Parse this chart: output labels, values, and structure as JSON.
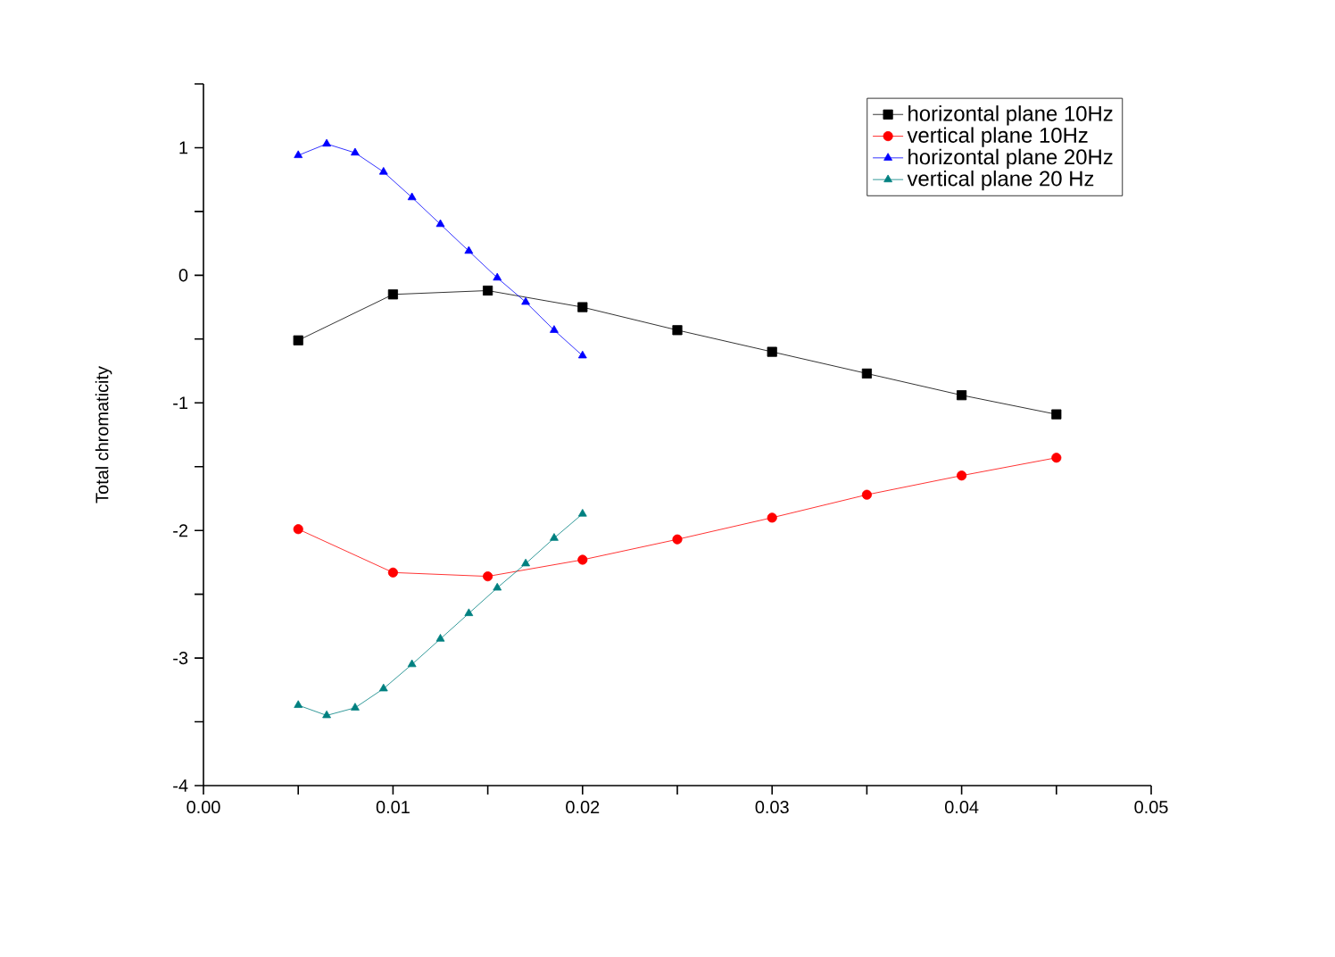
{
  "chart_data": {
    "type": "line",
    "ylabel": "Total chromaticity",
    "xlim": [
      0,
      0.05
    ],
    "ylim": [
      -4,
      1.5
    ],
    "xticks": [
      {
        "value": 0,
        "label": "0.00"
      },
      {
        "value": 0.005,
        "label": null
      },
      {
        "value": 0.01,
        "label": "0.01"
      },
      {
        "value": 0.015,
        "label": null
      },
      {
        "value": 0.02,
        "label": "0.02"
      },
      {
        "value": 0.025,
        "label": null
      },
      {
        "value": 0.03,
        "label": "0.03"
      },
      {
        "value": 0.035,
        "label": null
      },
      {
        "value": 0.04,
        "label": "0.04"
      },
      {
        "value": 0.045,
        "label": null
      },
      {
        "value": 0.05,
        "label": "0.05"
      }
    ],
    "yticks": [
      -4,
      {
        "value": -3.5,
        "label": null
      },
      -3,
      {
        "value": -2.5,
        "label": null
      },
      -2,
      {
        "value": -1.5,
        "label": null
      },
      -1,
      {
        "value": -0.5,
        "label": null
      },
      0,
      {
        "value": 0.5,
        "label": null
      },
      1,
      {
        "value": 1.5,
        "label": null
      }
    ],
    "grid": false,
    "legend": "top right",
    "series": [
      {
        "name": "horizontal plane 10Hz",
        "color": "#000000",
        "marker": "square",
        "x": [
          0.005,
          0.01,
          0.015,
          0.02,
          0.025,
          0.03,
          0.035,
          0.04,
          0.045
        ],
        "values": [
          -0.51,
          -0.15,
          -0.12,
          -0.25,
          -0.43,
          -0.6,
          -0.77,
          -0.94,
          -1.09
        ]
      },
      {
        "name": "vertical plane 10Hz",
        "color": "#ff0000",
        "marker": "circle",
        "x": [
          0.005,
          0.01,
          0.015,
          0.02,
          0.025,
          0.03,
          0.035,
          0.04,
          0.045
        ],
        "values": [
          -1.99,
          -2.33,
          -2.36,
          -2.23,
          -2.07,
          -1.9,
          -1.72,
          -1.57,
          -1.43
        ]
      },
      {
        "name": "horizontal plane 20Hz",
        "color": "#0000ff",
        "marker": "triangle",
        "x": [
          0.005,
          0.0065,
          0.008,
          0.0095,
          0.011,
          0.0125,
          0.014,
          0.0155,
          0.017,
          0.0185,
          0.02
        ],
        "values": [
          0.94,
          1.03,
          0.96,
          0.81,
          0.61,
          0.4,
          0.19,
          -0.02,
          -0.21,
          -0.43,
          -0.63
        ]
      },
      {
        "name": "vertical plane 20 Hz",
        "color": "#008080",
        "marker": "triangle",
        "x": [
          0.005,
          0.0065,
          0.008,
          0.0095,
          0.011,
          0.0125,
          0.014,
          0.0155,
          0.017,
          0.0185,
          0.02
        ],
        "values": [
          -3.37,
          -3.45,
          -3.39,
          -3.24,
          -3.05,
          -2.85,
          -2.65,
          -2.45,
          -2.26,
          -2.06,
          -1.87
        ]
      }
    ]
  }
}
